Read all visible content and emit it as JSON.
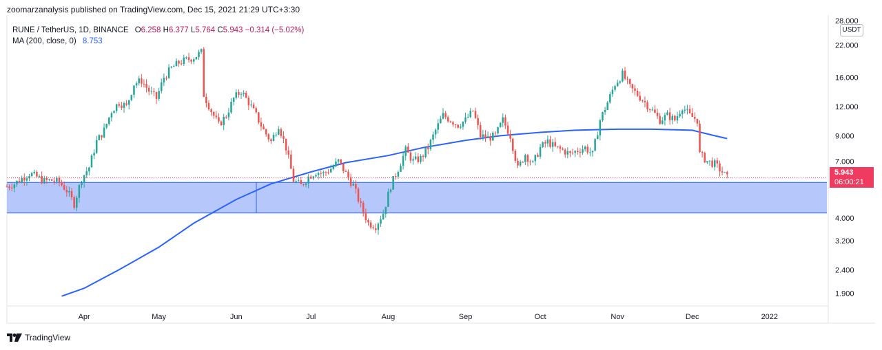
{
  "header": {
    "publisher_text": "zoomarzanalysis published on TradingView.com, Dec 15, 2021 21:29 UTC+3:30"
  },
  "legend": {
    "symbol": "RUNE / TetherUS, 1D, BINANCE",
    "open_label": "O",
    "open": "6.258",
    "high_label": "H",
    "high": "6.377",
    "low_label": "L",
    "low": "5.764",
    "close_label": "C",
    "close": "5.943",
    "change": "−0.314 (−5.02%)",
    "ma_label": "MA (200, close, 0)",
    "ma_value": "8.753"
  },
  "price_axis": {
    "unit": "USDT",
    "current_price": "5.943",
    "countdown": "06:00:21"
  },
  "footer": {
    "brand": "TradingView"
  },
  "colors": {
    "up": "#26a69a",
    "down": "#ef5350",
    "ma": "#2962ff",
    "zone": "#a9bdfb",
    "zone_border": "#2962ff",
    "price_tag": "#ef3b5f"
  },
  "chart_data": {
    "type": "candlestick",
    "y_scale": "log",
    "y_ticks": [
      "28.000",
      "22.000",
      "16.000",
      "12.000",
      "9.000",
      "7.000",
      "4.000",
      "3.200",
      "2.400",
      "1.900"
    ],
    "y_tick_values": [
      28,
      22,
      16,
      12,
      9,
      7,
      4,
      3.2,
      2.4,
      1.9
    ],
    "x_ticks": [
      "Apr",
      "May",
      "Jun",
      "Jul",
      "Aug",
      "Sep",
      "Oct",
      "Nov",
      "Dec",
      "2022"
    ],
    "x_tick_dates": [
      "2021-04-01",
      "2021-05-01",
      "2021-06-01",
      "2021-07-01",
      "2021-08-01",
      "2021-09-01",
      "2021-10-01",
      "2021-11-01",
      "2021-12-01",
      "2022-01-01"
    ],
    "x_range": [
      "2021-03-01",
      "2022-01-24"
    ],
    "support_zone": {
      "low": 4.2,
      "high": 5.68,
      "start": "2021-03-01",
      "end": "2022-01-24"
    },
    "closes": [
      [
        "2021-03-01",
        5.45
      ],
      [
        "2021-03-04",
        5.6
      ],
      [
        "2021-03-07",
        5.9
      ],
      [
        "2021-03-10",
        6.2
      ],
      [
        "2021-03-13",
        6.0
      ],
      [
        "2021-03-16",
        5.75
      ],
      [
        "2021-03-19",
        5.8
      ],
      [
        "2021-03-22",
        5.7
      ],
      [
        "2021-03-25",
        5.25
      ],
      [
        "2021-03-28",
        4.6
      ],
      [
        "2021-03-31",
        5.9
      ],
      [
        "2021-04-03",
        6.6
      ],
      [
        "2021-04-06",
        8.5
      ],
      [
        "2021-04-09",
        9.5
      ],
      [
        "2021-04-12",
        11.5
      ],
      [
        "2021-04-15",
        12.5
      ],
      [
        "2021-04-18",
        12.0
      ],
      [
        "2021-04-21",
        15.0
      ],
      [
        "2021-04-24",
        15.5
      ],
      [
        "2021-04-27",
        14.0
      ],
      [
        "2021-04-30",
        13.0
      ],
      [
        "2021-05-03",
        16.0
      ],
      [
        "2021-05-06",
        17.5
      ],
      [
        "2021-05-09",
        18.5
      ],
      [
        "2021-05-12",
        19.0
      ],
      [
        "2021-05-15",
        19.5
      ],
      [
        "2021-05-18",
        20.5
      ],
      [
        "2021-05-19",
        13.5
      ],
      [
        "2021-05-22",
        11.5
      ],
      [
        "2021-05-25",
        10.0
      ],
      [
        "2021-05-28",
        11.0
      ],
      [
        "2021-05-31",
        13.0
      ],
      [
        "2021-06-03",
        14.0
      ],
      [
        "2021-06-06",
        12.5
      ],
      [
        "2021-06-09",
        11.0
      ],
      [
        "2021-06-12",
        9.5
      ],
      [
        "2021-06-15",
        8.5
      ],
      [
        "2021-06-18",
        10.0
      ],
      [
        "2021-06-21",
        8.0
      ],
      [
        "2021-06-24",
        5.8
      ],
      [
        "2021-06-27",
        5.5
      ],
      [
        "2021-06-30",
        6.0
      ],
      [
        "2021-07-03",
        6.3
      ],
      [
        "2021-07-06",
        6.2
      ],
      [
        "2021-07-09",
        6.5
      ],
      [
        "2021-07-12",
        7.0
      ],
      [
        "2021-07-15",
        6.2
      ],
      [
        "2021-07-18",
        5.5
      ],
      [
        "2021-07-21",
        4.5
      ],
      [
        "2021-07-24",
        3.8
      ],
      [
        "2021-07-27",
        3.7
      ],
      [
        "2021-07-30",
        4.2
      ],
      [
        "2021-08-02",
        5.5
      ],
      [
        "2021-08-05",
        6.5
      ],
      [
        "2021-08-08",
        7.8
      ],
      [
        "2021-08-11",
        7.0
      ],
      [
        "2021-08-14",
        7.2
      ],
      [
        "2021-08-17",
        8.0
      ],
      [
        "2021-08-20",
        9.5
      ],
      [
        "2021-08-23",
        11.0
      ],
      [
        "2021-08-26",
        10.5
      ],
      [
        "2021-08-29",
        10.0
      ],
      [
        "2021-09-01",
        10.5
      ],
      [
        "2021-09-04",
        11.5
      ],
      [
        "2021-09-07",
        9.0
      ],
      [
        "2021-09-10",
        8.8
      ],
      [
        "2021-09-13",
        9.0
      ],
      [
        "2021-09-16",
        10.5
      ],
      [
        "2021-09-19",
        9.0
      ],
      [
        "2021-09-22",
        6.5
      ],
      [
        "2021-09-25",
        7.5
      ],
      [
        "2021-09-28",
        6.8
      ],
      [
        "2021-10-01",
        8.0
      ],
      [
        "2021-10-04",
        8.5
      ],
      [
        "2021-10-07",
        8.0
      ],
      [
        "2021-10-10",
        7.8
      ],
      [
        "2021-10-13",
        7.5
      ],
      [
        "2021-10-16",
        7.8
      ],
      [
        "2021-10-19",
        8.0
      ],
      [
        "2021-10-22",
        7.5
      ],
      [
        "2021-10-25",
        10.5
      ],
      [
        "2021-10-28",
        12.5
      ],
      [
        "2021-10-31",
        15.0
      ],
      [
        "2021-11-03",
        16.5
      ],
      [
        "2021-11-06",
        14.5
      ],
      [
        "2021-11-09",
        13.5
      ],
      [
        "2021-11-12",
        12.5
      ],
      [
        "2021-11-15",
        11.5
      ],
      [
        "2021-11-18",
        10.5
      ],
      [
        "2021-11-21",
        11.0
      ],
      [
        "2021-11-24",
        10.5
      ],
      [
        "2021-11-27",
        12.0
      ],
      [
        "2021-11-30",
        11.0
      ],
      [
        "2021-12-03",
        10.5
      ],
      [
        "2021-12-04",
        7.5
      ],
      [
        "2021-12-07",
        7.0
      ],
      [
        "2021-12-10",
        6.8
      ],
      [
        "2021-12-13",
        6.3
      ],
      [
        "2021-12-15",
        5.943
      ]
    ],
    "ma_200": [
      [
        "2021-03-23",
        1.85
      ],
      [
        "2021-04-01",
        2.0
      ],
      [
        "2021-04-15",
        2.4
      ],
      [
        "2021-05-01",
        3.0
      ],
      [
        "2021-05-15",
        3.8
      ],
      [
        "2021-06-01",
        4.8
      ],
      [
        "2021-06-15",
        5.6
      ],
      [
        "2021-07-01",
        6.3
      ],
      [
        "2021-07-15",
        6.9
      ],
      [
        "2021-08-01",
        7.4
      ],
      [
        "2021-08-15",
        8.0
      ],
      [
        "2021-09-01",
        8.6
      ],
      [
        "2021-09-15",
        9.0
      ],
      [
        "2021-10-01",
        9.3
      ],
      [
        "2021-10-15",
        9.5
      ],
      [
        "2021-11-01",
        9.6
      ],
      [
        "2021-11-15",
        9.6
      ],
      [
        "2021-12-01",
        9.5
      ],
      [
        "2021-12-10",
        9.0
      ],
      [
        "2021-12-15",
        8.753
      ]
    ]
  }
}
